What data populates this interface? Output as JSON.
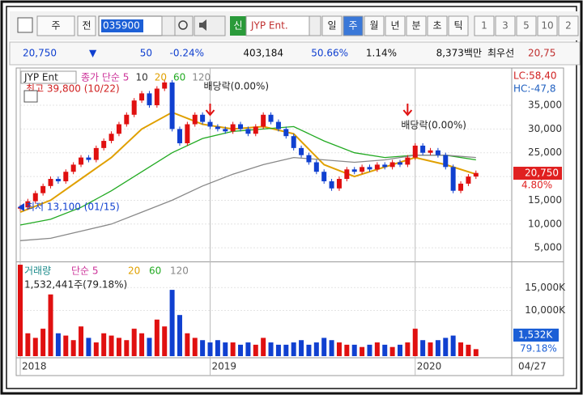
{
  "toolbar": {
    "type_select": "주",
    "prev": "전",
    "code": "035900",
    "badge": "신",
    "name": "JYP Ent.",
    "periods": [
      "일",
      "주",
      "월",
      "년",
      "분",
      "초",
      "틱"
    ],
    "selected": 1,
    "intervals": [
      "1",
      "3",
      "5",
      "10",
      "2"
    ]
  },
  "infobar": {
    "price": "20,750",
    "direction": "▼",
    "change": "50",
    "change_pct": "-0.24%",
    "volume": "403,184",
    "ratio1": "50.66%",
    "ratio2": "1.14%",
    "amount": "8,373백만",
    "best": "최우선",
    "best_price": "20,75"
  },
  "chart_data": {
    "type": "candlestick",
    "name": "JYP Ent",
    "ma_legend": [
      {
        "label": "종가 단순 5",
        "color": "#cc3399"
      },
      {
        "label": "10",
        "color": "#333333"
      },
      {
        "label": "20",
        "color": "#e0a000"
      },
      {
        "label": "60",
        "color": "#22aa22"
      },
      {
        "label": "120",
        "color": "#888888"
      }
    ],
    "up_color": "#e01010",
    "down_color": "#1040d0",
    "close": [
      13500,
      14800,
      16500,
      18000,
      19500,
      19000,
      21000,
      22500,
      24000,
      23500,
      26000,
      27500,
      29000,
      31000,
      33000,
      36000,
      37500,
      35000,
      38500,
      39800,
      30000,
      27000,
      31000,
      33000,
      31500,
      30500,
      30000,
      29500,
      31000,
      30000,
      29000,
      30500,
      33000,
      31500,
      30000,
      28500,
      26000,
      24500,
      23000,
      21000,
      19000,
      17500,
      19500,
      21500,
      21000,
      22000,
      21500,
      22500,
      22000,
      23000,
      22500,
      24000,
      26500,
      25000,
      25500,
      24500,
      22000,
      17000,
      18500,
      20000,
      20750
    ],
    "ma_lines": [
      {
        "color": "#e0a000",
        "x": [
          0,
          4,
          8,
          12,
          16,
          20,
          24,
          28,
          32,
          36,
          40,
          44,
          48,
          52,
          56,
          60
        ],
        "values": [
          12500,
          15000,
          19500,
          24000,
          30000,
          33500,
          31000,
          30000,
          30500,
          29000,
          22500,
          20000,
          22000,
          24000,
          22500,
          20500
        ]
      },
      {
        "color": "#22aa22",
        "x": [
          0,
          4,
          8,
          12,
          16,
          20,
          24,
          28,
          32,
          36,
          40,
          44,
          48,
          52,
          56,
          60
        ],
        "values": [
          9800,
          11000,
          13500,
          17000,
          21000,
          25000,
          28000,
          29500,
          30000,
          30500,
          27500,
          25000,
          24000,
          24500,
          24500,
          23500
        ]
      },
      {
        "color": "#888888",
        "x": [
          0,
          4,
          8,
          12,
          16,
          20,
          24,
          28,
          32,
          36,
          40,
          44,
          48,
          52,
          56,
          60
        ],
        "values": [
          6500,
          7000,
          8500,
          10000,
          12500,
          15000,
          18000,
          20500,
          22500,
          24000,
          23500,
          23000,
          23500,
          24500,
          24500,
          24000
        ]
      }
    ],
    "ylim": [
      2300,
      42500
    ],
    "yticks": [
      {
        "value": 35000,
        "label": "35,000"
      },
      {
        "value": 30000,
        "label": "30,000"
      },
      {
        "value": 25000,
        "label": "25,000"
      },
      {
        "value": 20000,
        "label": "20,000"
      },
      {
        "value": 15000,
        "label": "15,000"
      },
      {
        "value": 10000,
        "label": "10,000"
      },
      {
        "value": 5000,
        "label": "5,000"
      }
    ],
    "high_note": "최고 39,800 (10/22)",
    "low_note": "최저 13,100 (01/15)",
    "dividends": [
      {
        "text": "배당락(0.00%)",
        "index": 25
      },
      {
        "text": "배당락(0.00%)",
        "index": 51
      }
    ],
    "lc": "LC:58,40",
    "hc": "HC:-47,8",
    "last_price": "20,750",
    "last_pct": "4.80%",
    "volume": {
      "label": "거래량",
      "ma_label": "단순 5",
      "ma_periods": [
        "20",
        "60",
        "120"
      ],
      "note": "1,532,441주(79.18%)",
      "values": [
        20000,
        5000,
        4000,
        6000,
        13500,
        5000,
        4500,
        3500,
        6500,
        4000,
        3000,
        5000,
        4500,
        4000,
        3500,
        6000,
        5000,
        4000,
        8000,
        6500,
        14500,
        9000,
        5000,
        4000,
        3500,
        3000,
        3500,
        3000,
        3000,
        2500,
        3000,
        2500,
        4000,
        3000,
        2500,
        2500,
        3000,
        3500,
        2500,
        3000,
        4000,
        3500,
        3000,
        2500,
        2500,
        2000,
        2500,
        3000,
        2500,
        2000,
        2500,
        3000,
        6000,
        3500,
        3000,
        3500,
        4000,
        4500,
        3000,
        2500,
        1532
      ],
      "ylim": [
        0,
        20360
      ],
      "yticks": [
        {
          "value": 15000,
          "label": "15,000K"
        },
        {
          "value": 10000,
          "label": "10,000K"
        }
      ],
      "last_label": "1,532K",
      "last_pct": "79.18%"
    },
    "x_labels": [
      {
        "index": 0,
        "label": "2018"
      },
      {
        "index": 25,
        "label": "2019"
      },
      {
        "index": 52,
        "label": "2020"
      }
    ],
    "last_date": "04/27"
  }
}
